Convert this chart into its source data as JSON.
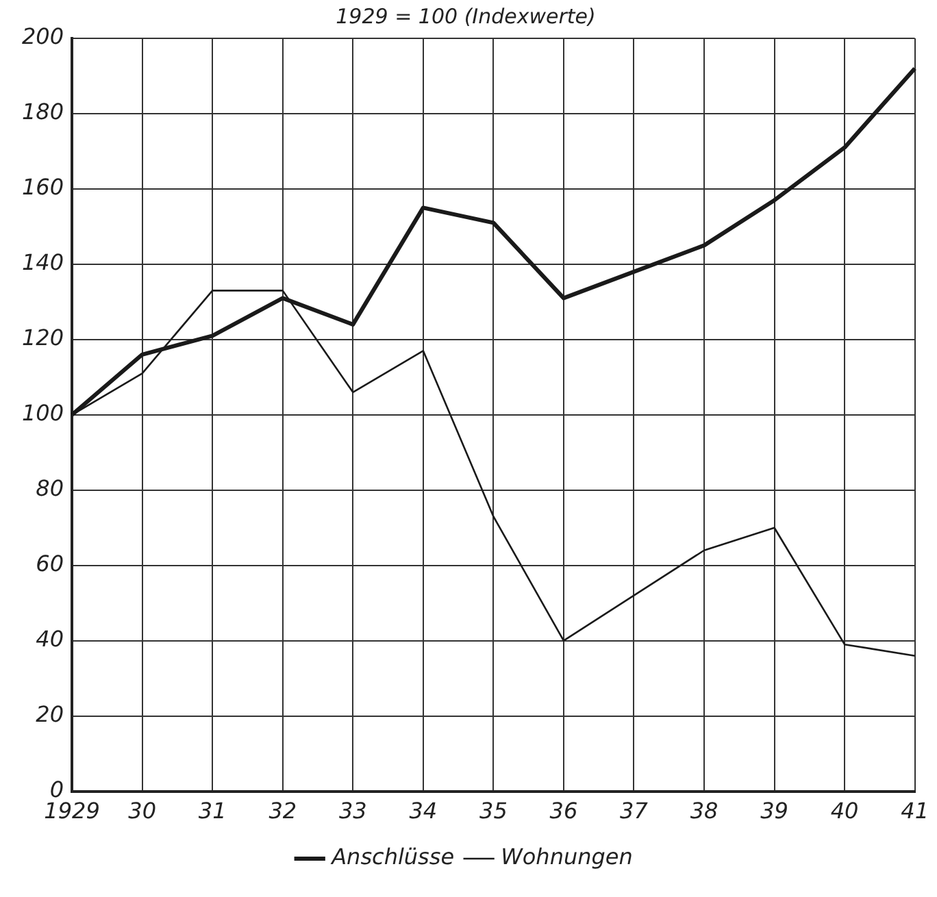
{
  "chart_data": {
    "type": "line",
    "title": "1929 = 100 (Indexwerte)",
    "categories": [
      "1929",
      "30",
      "31",
      "32",
      "33",
      "34",
      "35",
      "36",
      "37",
      "38",
      "39",
      "40",
      "41"
    ],
    "series": [
      {
        "name": "Anschlüsse",
        "color": "#1a1a1a",
        "values": [
          100,
          116,
          121,
          131,
          124,
          155,
          151,
          131,
          138,
          145,
          157,
          171,
          192
        ]
      },
      {
        "name": "Wohnungen",
        "color": "#1a1a1a",
        "values": [
          100,
          111,
          133,
          133,
          106,
          117,
          73,
          40,
          52,
          64,
          70,
          39,
          36
        ]
      }
    ],
    "ylim": [
      0,
      200
    ],
    "yticks": [
      0,
      20,
      40,
      60,
      80,
      100,
      120,
      140,
      160,
      180,
      200
    ],
    "grid": true,
    "legend": "bottom",
    "marker": "none",
    "line_style": "solid"
  }
}
